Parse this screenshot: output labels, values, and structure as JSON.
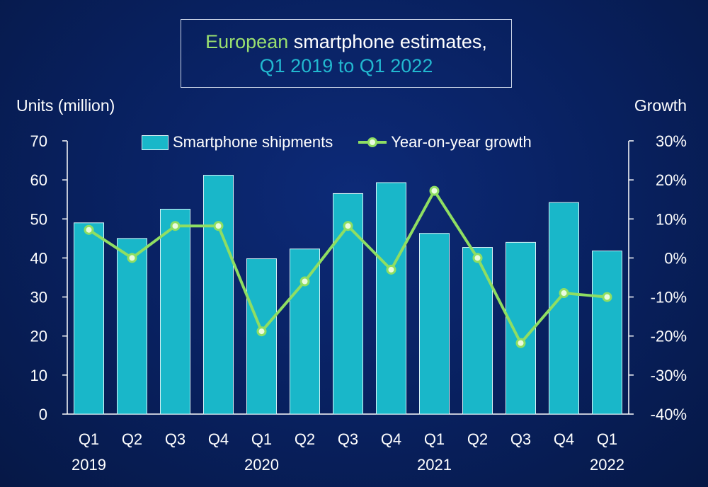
{
  "title": {
    "accent": "European",
    "rest": " smartphone estimates,",
    "line2": "Q1 2019 to Q1 2022"
  },
  "chart_data": {
    "type": "bar",
    "title": "European smartphone estimates, Q1 2019 to Q1 2022",
    "ylabel": "Units (million)",
    "y2label": "Growth",
    "categories": [
      "Q1",
      "Q2",
      "Q3",
      "Q4",
      "Q1",
      "Q2",
      "Q3",
      "Q4",
      "Q1",
      "Q2",
      "Q3",
      "Q4",
      "Q1"
    ],
    "year_labels": [
      "2019",
      "",
      "",
      "",
      "2020",
      "",
      "",
      "",
      "2021",
      "",
      "",
      "",
      "2022"
    ],
    "ylim": [
      0,
      70
    ],
    "yticks": [
      0,
      10,
      20,
      30,
      40,
      50,
      60,
      70
    ],
    "y2lim": [
      -40,
      30
    ],
    "y2ticks": [
      "-40%",
      "-30%",
      "-20%",
      "-10%",
      "0%",
      "10%",
      "20%",
      "30%"
    ],
    "grid": false,
    "legend_position": "top",
    "series": [
      {
        "name": "Smartphone shipments",
        "type": "bar",
        "axis": "left",
        "values": [
          49.0,
          45.0,
          52.5,
          61.2,
          39.8,
          42.3,
          56.5,
          59.3,
          46.3,
          42.7,
          44.0,
          54.2,
          41.8
        ],
        "color": "#19b7c9"
      },
      {
        "name": "Year-on-year growth",
        "type": "line",
        "axis": "right",
        "values": [
          7.2,
          0.0,
          8.2,
          8.2,
          -18.8,
          -6.0,
          8.2,
          -3.0,
          17.2,
          0.0,
          -21.8,
          -9.0,
          -10.0
        ],
        "color": "#8fde62"
      }
    ]
  }
}
